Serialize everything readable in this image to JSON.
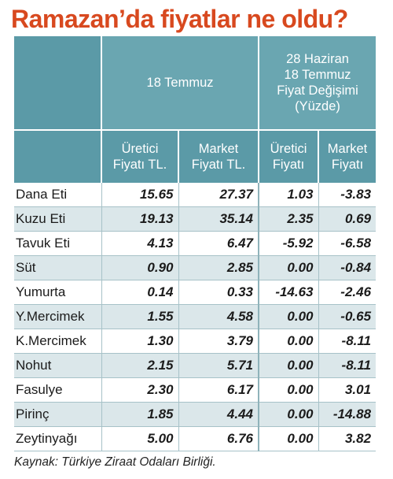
{
  "title": "Ramazan’da fiyatlar ne oldu?",
  "header": {
    "group1": "18 Temmuz",
    "group2_lines": [
      "28 Haziran",
      "18 Temmuz",
      "Fiyat Değişimi",
      "(Yüzde)"
    ],
    "columns": [
      [
        "Üretici",
        "Fiyatı TL."
      ],
      [
        "Market",
        "Fiyatı TL."
      ],
      [
        "Üretici",
        "Fiyatı"
      ],
      [
        "Market",
        "Fiyatı"
      ]
    ]
  },
  "rows": [
    {
      "name": "Dana Eti",
      "values": [
        "15.65",
        "27.37",
        "1.03",
        "-3.83"
      ]
    },
    {
      "name": "Kuzu Eti",
      "values": [
        "19.13",
        "35.14",
        "2.35",
        "0.69"
      ]
    },
    {
      "name": "Tavuk Eti",
      "values": [
        "4.13",
        "6.47",
        "-5.92",
        "-6.58"
      ]
    },
    {
      "name": "Süt",
      "values": [
        "0.90",
        "2.85",
        "0.00",
        "-0.84"
      ]
    },
    {
      "name": "Yumurta",
      "values": [
        "0.14",
        "0.33",
        "-14.63",
        "-2.46"
      ]
    },
    {
      "name": "Y.Mercimek",
      "values": [
        "1.55",
        "4.58",
        "0.00",
        "-0.65"
      ]
    },
    {
      "name": "K.Mercimek",
      "values": [
        "1.30",
        "3.79",
        "0.00",
        "-8.11"
      ]
    },
    {
      "name": "Nohut",
      "values": [
        "2.15",
        "5.71",
        "0.00",
        "-8.11"
      ]
    },
    {
      "name": "Fasulye",
      "values": [
        "2.30",
        "6.17",
        "0.00",
        "3.01"
      ]
    },
    {
      "name": "Pirinç",
      "values": [
        "1.85",
        "4.44",
        "0.00",
        "-14.88"
      ]
    },
    {
      "name": "Zeytinyağı",
      "values": [
        "5.00",
        "6.76",
        "0.00",
        "3.82"
      ]
    }
  ],
  "source": "Kaynak: Türkiye Ziraat Odaları Birliği."
}
